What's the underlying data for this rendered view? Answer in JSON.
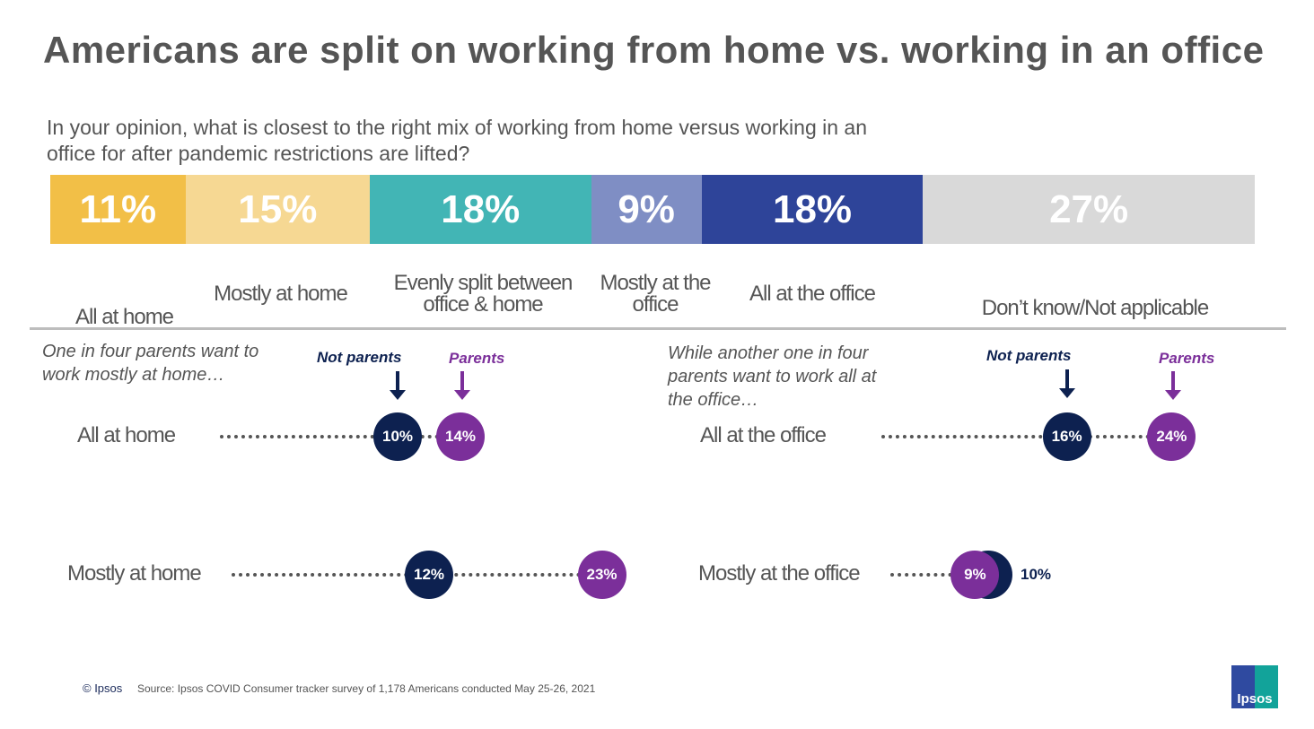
{
  "title": "Americans are split on working from home vs. working in an office",
  "subtitle": "In your opinion, what is closest to the right mix of working from home versus working in an office for after pandemic restrictions are lifted?",
  "chart_data": [
    {
      "type": "bar",
      "stacked": true,
      "orientation": "horizontal",
      "categories": [
        "All at home",
        "Mostly at home",
        "Evenly split between office & home",
        "Mostly at the office",
        "All at the office",
        "Don’t know/Not applicable"
      ],
      "values": [
        11,
        15,
        18,
        9,
        18,
        27
      ],
      "labels": [
        "11%",
        "15%",
        "18%",
        "9%",
        "18%",
        "27%"
      ],
      "colors": [
        "#f2bf47",
        "#f6d893",
        "#42b5b5",
        "#7f8ec4",
        "#2e4499",
        "#d9d9d9"
      ]
    },
    {
      "type": "scatter",
      "subtype": "dumbbell",
      "note": "One in four parents want to work mostly at home…",
      "legend": [
        "Not parents",
        "Parents"
      ],
      "series_colors": {
        "Not parents": "#0d2150",
        "Parents": "#7b2f9a"
      },
      "rows": [
        {
          "label": "All at home",
          "not_parents": 10,
          "parents": 14,
          "np_label": "10%",
          "p_label": "14%"
        },
        {
          "label": "Mostly at home",
          "not_parents": 12,
          "parents": 23,
          "np_label": "12%",
          "p_label": "23%"
        }
      ]
    },
    {
      "type": "scatter",
      "subtype": "dumbbell",
      "note": "While another one in four parents want to work all at the office…",
      "legend": [
        "Not parents",
        "Parents"
      ],
      "series_colors": {
        "Not parents": "#0d2150",
        "Parents": "#7b2f9a"
      },
      "rows": [
        {
          "label": "All at the office",
          "not_parents": 16,
          "parents": 24,
          "np_label": "16%",
          "p_label": "24%"
        },
        {
          "label": "Mostly at the office",
          "not_parents": 10,
          "parents": 9,
          "np_label": "10%",
          "p_label": "9%"
        }
      ]
    }
  ],
  "footer": {
    "copyright": "© Ipsos",
    "source": "Source: Ipsos COVID Consumer tracker survey of 1,178 Americans conducted May 25-26, 2021",
    "logo_text": "Ipsos"
  }
}
